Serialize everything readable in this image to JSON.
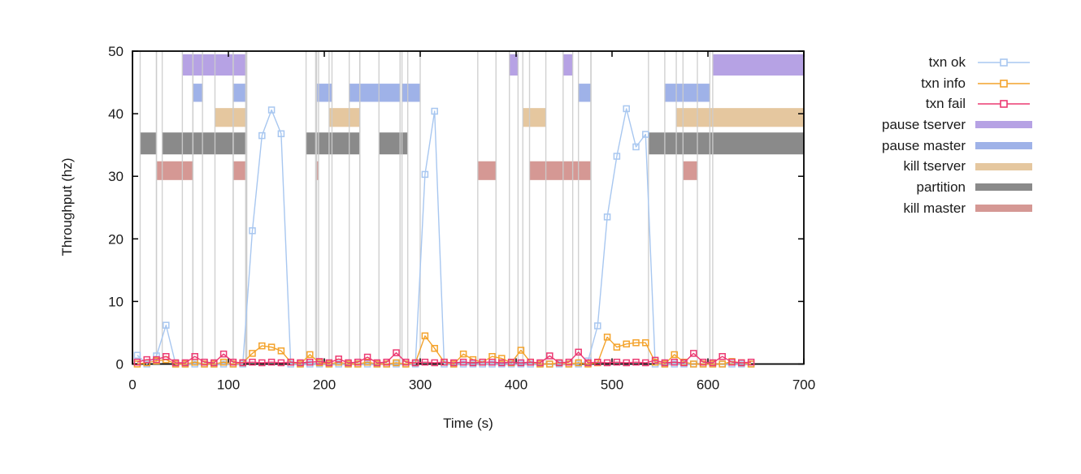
{
  "chart_data": {
    "type": "line",
    "title": "",
    "xlabel": "Time (s)",
    "ylabel": "Throughput (hz)",
    "xlim": [
      0,
      700
    ],
    "ylim": [
      0,
      50
    ],
    "xticks": [
      0,
      100,
      200,
      300,
      400,
      500,
      600,
      700
    ],
    "yticks": [
      0,
      10,
      20,
      30,
      40,
      50
    ],
    "grid": false,
    "legend_position": "right-outside",
    "background": "#ffffff",
    "axis_color": "#000000",
    "tick_label_color": "#1a1a1a",
    "event_line_color": "#cccccc",
    "x": [
      5,
      15,
      25,
      35,
      45,
      55,
      65,
      75,
      85,
      95,
      105,
      115,
      125,
      135,
      145,
      155,
      165,
      175,
      185,
      195,
      205,
      215,
      225,
      235,
      245,
      255,
      265,
      275,
      285,
      295,
      305,
      315,
      325,
      335,
      345,
      355,
      365,
      375,
      385,
      395,
      405,
      415,
      425,
      435,
      445,
      455,
      465,
      475,
      485,
      495,
      505,
      515,
      525,
      535,
      545,
      555,
      565,
      575,
      585,
      595,
      605,
      615,
      625,
      635,
      645
    ],
    "series": [
      {
        "name": "txn ok",
        "color": "#a8c7f0",
        "marker": "open-square",
        "values": [
          1.4,
          0,
          1.3,
          6.2,
          0,
          0,
          0,
          0,
          0,
          0,
          0,
          0,
          21.3,
          36.5,
          40.6,
          36.8,
          0,
          0,
          0,
          0,
          0,
          0,
          0,
          0,
          0,
          0,
          0,
          0,
          0,
          0,
          30.3,
          40.4,
          0,
          0,
          0,
          0,
          0,
          0,
          0,
          0,
          0,
          0,
          0,
          0,
          0,
          0,
          0,
          0.5,
          6.1,
          23.5,
          33.2,
          40.8,
          34.7,
          36.7,
          0,
          0,
          0,
          0,
          0,
          0,
          0,
          0,
          0,
          0,
          0
        ]
      },
      {
        "name": "txn info",
        "color": "#f4a32c",
        "marker": "open-square",
        "values": [
          0,
          0.2,
          0.5,
          0.7,
          0,
          0,
          0.3,
          0,
          0,
          0.3,
          0,
          0.2,
          1.7,
          2.9,
          2.7,
          2.1,
          0.3,
          0,
          1.5,
          0.2,
          0,
          0.3,
          0,
          0,
          0.3,
          0,
          0,
          0.2,
          0,
          0.2,
          4.5,
          2.5,
          0.3,
          0,
          1.6,
          0.7,
          0.3,
          1.2,
          0.9,
          0.2,
          2.2,
          0.3,
          0,
          0,
          0.2,
          0,
          0.2,
          0,
          0.2,
          4.3,
          2.7,
          3.2,
          3.4,
          3.4,
          0.3,
          0,
          1.5,
          0.3,
          0,
          0,
          0,
          0,
          0.4,
          0.2,
          0
        ]
      },
      {
        "name": "txn fail",
        "color": "#ec3a72",
        "marker": "open-square",
        "values": [
          0.3,
          0.7,
          0.7,
          1.2,
          0.2,
          0.2,
          1.2,
          0.3,
          0.2,
          1.6,
          0.3,
          0.2,
          0.3,
          0.2,
          0.3,
          0.2,
          0.3,
          0.2,
          0.3,
          0.4,
          0.2,
          0.8,
          0.2,
          0.3,
          1.1,
          0.2,
          0.3,
          1.8,
          0.3,
          0.2,
          0.3,
          0.2,
          0.3,
          0.2,
          0.3,
          0.2,
          0.3,
          0.3,
          0.2,
          0.3,
          0.2,
          0.3,
          0.2,
          1.3,
          0.2,
          0.3,
          1.9,
          0.2,
          0.3,
          0.2,
          0.3,
          0.2,
          0.3,
          0.2,
          0.6,
          0.2,
          0.3,
          0.2,
          1.7,
          0.3,
          0.2,
          1.2,
          0.3,
          0.2,
          0.3
        ]
      }
    ],
    "bands": [
      {
        "name": "pause tserver",
        "color": "#b6a2e4",
        "y": [
          46.1,
          49.5
        ],
        "intervals": [
          [
            52,
            119
          ],
          [
            393,
            402
          ],
          [
            449,
            459
          ],
          [
            605,
            700
          ]
        ]
      },
      {
        "name": "pause master",
        "color": "#9fb2e8",
        "y": [
          41.9,
          44.8
        ],
        "intervals": [
          [
            63,
            73
          ],
          [
            105,
            118
          ],
          [
            192,
            208
          ],
          [
            226,
            279
          ],
          [
            281,
            300
          ],
          [
            465,
            478
          ],
          [
            555,
            602
          ]
        ]
      },
      {
        "name": "kill tserver",
        "color": "#e5c79f",
        "y": [
          37.9,
          40.9
        ],
        "intervals": [
          [
            86,
            119
          ],
          [
            205,
            237
          ],
          [
            407,
            431
          ],
          [
            567,
            700
          ]
        ]
      },
      {
        "name": "partition",
        "color": "#8a8a8a",
        "y": [
          33.5,
          37.0
        ],
        "intervals": [
          [
            8,
            25
          ],
          [
            31,
            119
          ],
          [
            181,
            237
          ],
          [
            257,
            287
          ],
          [
            538,
            700
          ]
        ]
      },
      {
        "name": "kill master",
        "color": "#d59894",
        "y": [
          29.4,
          32.4
        ],
        "intervals": [
          [
            25,
            63
          ],
          [
            105,
            119
          ],
          [
            191,
            194
          ],
          [
            360,
            379
          ],
          [
            414,
            478
          ],
          [
            574,
            589
          ]
        ]
      }
    ],
    "legend": [
      {
        "label": "txn ok",
        "swatch": "line",
        "color": "#a8c7f0"
      },
      {
        "label": "txn info",
        "swatch": "line",
        "color": "#f4a32c"
      },
      {
        "label": "txn fail",
        "swatch": "line",
        "color": "#ec3a72"
      },
      {
        "label": "pause tserver",
        "swatch": "band",
        "color": "#b6a2e4"
      },
      {
        "label": "pause master",
        "swatch": "band",
        "color": "#9fb2e8"
      },
      {
        "label": "kill tserver",
        "swatch": "band",
        "color": "#e5c79f"
      },
      {
        "label": "partition",
        "swatch": "band",
        "color": "#8a8a8a"
      },
      {
        "label": "kill master",
        "swatch": "band",
        "color": "#d59894"
      }
    ]
  }
}
